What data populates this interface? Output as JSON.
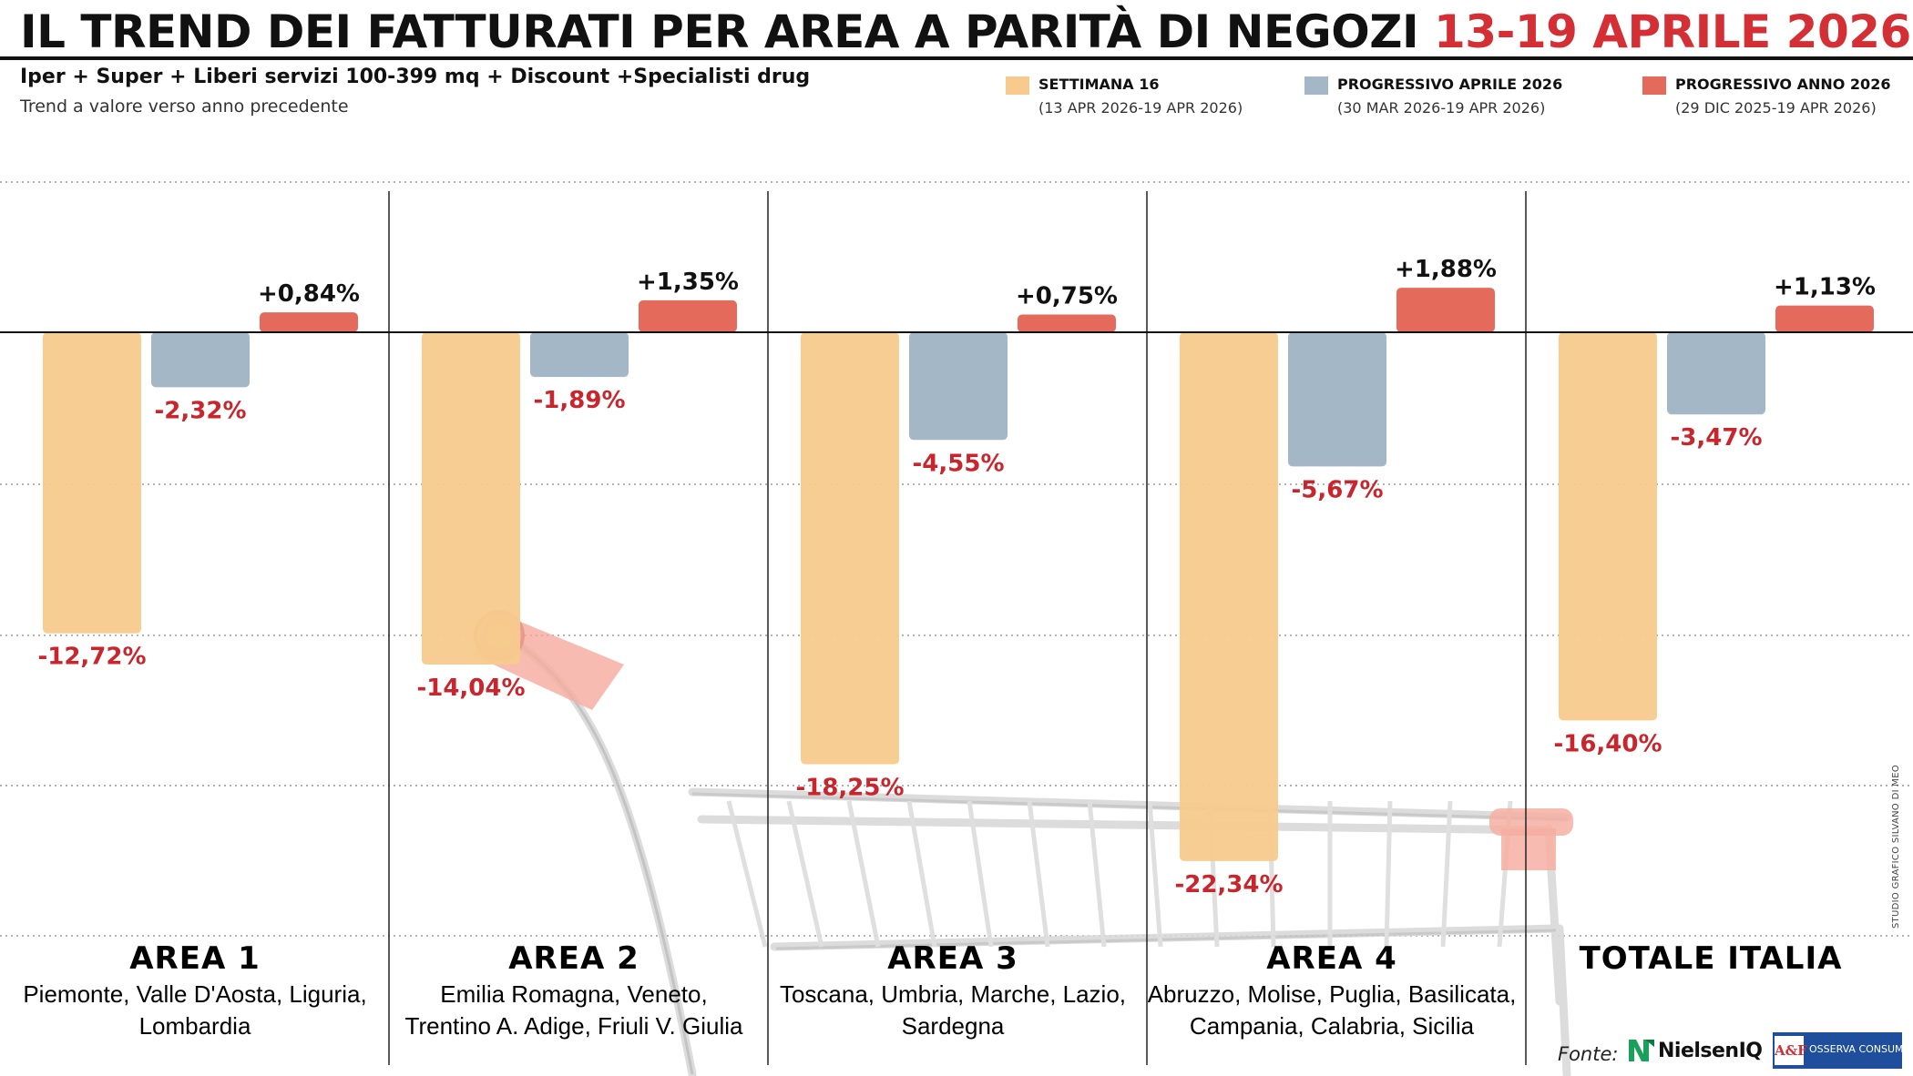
{
  "header": {
    "title_main": "IL TREND DEI FATTURATI PER AREA A PARITÀ DI NEGOZI",
    "title_dates": "13-19 APRILE 2026",
    "subtitle": "Iper + Super + Liberi servizi 100-399 mq + Discount +Specialisti drug",
    "subtitle2": "Trend a valore verso anno precedente"
  },
  "legend": [
    {
      "name": "SETTIMANA 16",
      "sub": "(13 APR 2026-19 APR 2026)",
      "color": "#f7ca8d"
    },
    {
      "name": "PROGRESSIVO APRILE 2026",
      "sub": "(30 MAR 2026-19 APR 2026)",
      "color": "#a3b7c6"
    },
    {
      "name": "PROGRESSIVO ANNO 2026",
      "sub": "(29 DIC 2025-19 APR 2026)",
      "color": "#e46b5c"
    }
  ],
  "chart_data": {
    "type": "bar",
    "categories": [
      "AREA 1",
      "AREA 2",
      "AREA 3",
      "AREA 4",
      "TOTALE ITALIA"
    ],
    "category_descriptions": [
      [
        "Piemonte, Valle D'Aosta, Liguria,",
        "Lombardia"
      ],
      [
        "Emilia Romagna, Veneto,",
        "Trentino A. Adige, Friuli V. Giulia"
      ],
      [
        "Toscana, Umbria, Marche, Lazio,",
        "Sardegna"
      ],
      [
        "Abruzzo, Molise, Puglia, Basilicata,",
        "Campania, Calabria, Sicilia"
      ],
      [
        "",
        ""
      ]
    ],
    "series": [
      {
        "name": "SETTIMANA 16",
        "color": "#f7ca8d",
        "values": [
          -12.72,
          -14.04,
          -18.25,
          -22.34,
          -16.4
        ],
        "labels": [
          "-12,72%",
          "-14,04%",
          "-18,25%",
          "-22,34%",
          "-16,40%"
        ]
      },
      {
        "name": "PROGRESSIVO APRILE 2026",
        "color": "#a3b7c6",
        "values": [
          -2.32,
          -1.89,
          -4.55,
          -5.67,
          -3.47
        ],
        "labels": [
          "-2,32%",
          "-1,89%",
          "-4,55%",
          "-5,67%",
          "-3,47%"
        ]
      },
      {
        "name": "PROGRESSIVO ANNO 2026",
        "color": "#e46b5c",
        "values": [
          0.84,
          1.35,
          0.75,
          1.88,
          1.13
        ],
        "labels": [
          "+0,84%",
          "+1,35%",
          "+0,75%",
          "+1,88%",
          "+1,13%"
        ]
      }
    ],
    "value_unit": "%",
    "grid": true,
    "legend_position": "top-right"
  },
  "footer": {
    "credit": "STUDIO GRAFICO SILVANO DI MEO",
    "source_label": "Fonte:",
    "source_1": "NielsenIQ",
    "source_2_mark": "A&F",
    "source_2": "OSSERVA CONSUMI"
  }
}
